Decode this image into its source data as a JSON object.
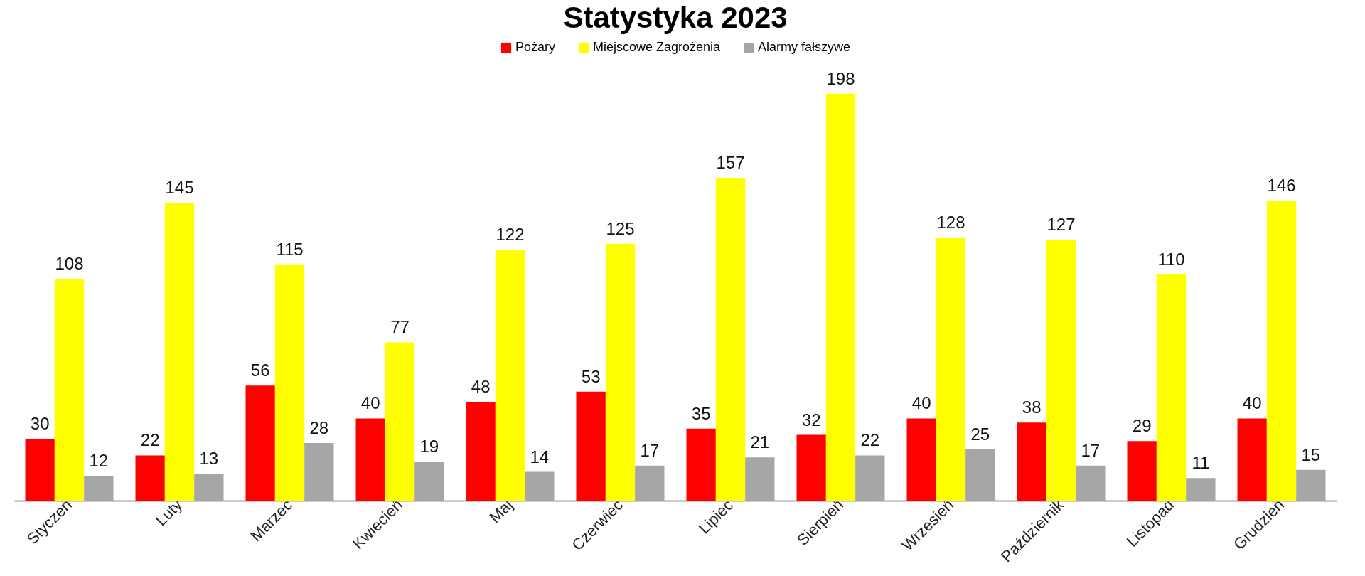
{
  "chart_data": {
    "type": "bar",
    "title": "Statystyka 2023",
    "categories": [
      "Styczeń",
      "Luty",
      "Marzec",
      "Kwiecień",
      "Maj",
      "Czerwiec",
      "Lipiec",
      "Sierpień",
      "Wrzesień",
      "Październik",
      "Listopad",
      "Grudzień"
    ],
    "series": [
      {
        "name": "Pożary",
        "color": "#ff0000",
        "values": [
          30,
          22,
          56,
          40,
          48,
          53,
          35,
          32,
          40,
          38,
          29,
          40
        ]
      },
      {
        "name": "Miejscowe Zagrożenia",
        "color": "#ffff00",
        "values": [
          108,
          145,
          115,
          77,
          122,
          125,
          157,
          198,
          128,
          127,
          110,
          146
        ]
      },
      {
        "name": "Alarmy fałszywe",
        "color": "#a6a6a6",
        "values": [
          12,
          13,
          28,
          19,
          14,
          17,
          21,
          22,
          25,
          17,
          11,
          15
        ]
      }
    ],
    "data_labels": true,
    "legend": "top"
  }
}
